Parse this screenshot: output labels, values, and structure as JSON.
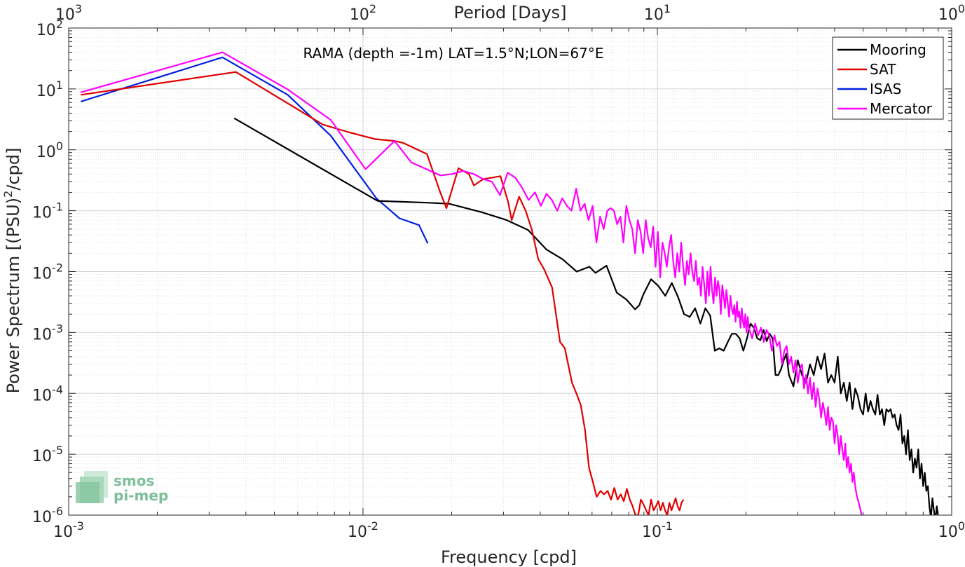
{
  "chart_data": {
    "type": "line",
    "title": "RAMA (depth =-1m) LAT=1.5°N;LON=67°E",
    "xlabel": "Frequency [cpd]",
    "ylabel": "Power Spectrum [(PSU)^2/cpd]",
    "ylabel_parts": {
      "base": "Power Spectrum [(PSU)",
      "sup": "2",
      "tail": "/cpd]"
    },
    "x2label": "Period [Days]",
    "xscale": "log",
    "yscale": "log",
    "xlim": [
      0.001,
      1
    ],
    "ylim": [
      1e-06,
      100
    ],
    "grid": true,
    "legend_placement": "top-right",
    "x_ticks": [
      {
        "value": 0.001,
        "base": "10",
        "exp": "-3"
      },
      {
        "value": 0.01,
        "base": "10",
        "exp": "-2"
      },
      {
        "value": 0.1,
        "base": "10",
        "exp": "-1"
      },
      {
        "value": 1,
        "base": "10",
        "exp": "0"
      }
    ],
    "y_ticks": [
      {
        "value": 1e-06,
        "base": "10",
        "exp": "-6"
      },
      {
        "value": 1e-05,
        "base": "10",
        "exp": "-5"
      },
      {
        "value": 0.0001,
        "base": "10",
        "exp": "-4"
      },
      {
        "value": 0.001,
        "base": "10",
        "exp": "-3"
      },
      {
        "value": 0.01,
        "base": "10",
        "exp": "-2"
      },
      {
        "value": 0.1,
        "base": "10",
        "exp": "-1"
      },
      {
        "value": 1,
        "base": "10",
        "exp": "0"
      },
      {
        "value": 10,
        "base": "10",
        "exp": "1"
      },
      {
        "value": 100,
        "base": "10",
        "exp": "2"
      }
    ],
    "top_ticks": [
      {
        "period": 1000,
        "base": "10",
        "exp": "3"
      },
      {
        "period": 100,
        "base": "10",
        "exp": "2"
      },
      {
        "period": 10,
        "base": "10",
        "exp": "1"
      },
      {
        "period": 1,
        "base": "10",
        "exp": "0"
      }
    ],
    "series": [
      {
        "name": "Mooring",
        "color": "#000000",
        "x": [
          0.00365,
          0.0112,
          0.0168,
          0.0196,
          0.0252,
          0.0308,
          0.0364,
          0.042,
          0.0476,
          0.0532,
          0.0588,
          0.0616,
          0.0672,
          0.0728,
          0.0784,
          0.084,
          0.0868,
          0.0896,
          0.0952,
          0.1008,
          0.1064,
          0.112,
          0.1176,
          0.1232,
          0.1288,
          0.1344,
          0.14,
          0.1456,
          0.1512,
          0.1568,
          0.1624,
          0.168,
          0.1736,
          0.1792,
          0.1848,
          0.1904,
          0.196,
          0.2016,
          0.2072,
          0.2128,
          0.2184,
          0.224,
          0.2296,
          0.2352,
          0.2408,
          0.2464,
          0.252,
          0.2576,
          0.2632,
          0.2688,
          0.2744,
          0.28,
          0.29,
          0.3,
          0.31,
          0.32,
          0.33,
          0.34,
          0.35,
          0.36,
          0.37,
          0.38,
          0.39,
          0.4,
          0.41,
          0.42,
          0.43,
          0.44,
          0.45,
          0.46,
          0.47,
          0.48,
          0.49,
          0.5,
          0.51,
          0.52,
          0.53,
          0.54,
          0.55,
          0.56,
          0.57,
          0.58,
          0.59,
          0.6,
          0.61,
          0.62,
          0.63,
          0.64,
          0.65,
          0.66,
          0.67,
          0.68,
          0.69,
          0.7,
          0.71,
          0.72,
          0.73,
          0.74,
          0.75,
          0.76,
          0.77,
          0.78,
          0.79,
          0.8,
          0.81,
          0.82,
          0.83,
          0.84,
          0.85,
          0.86,
          0.87,
          0.88,
          0.89,
          0.9,
          0.91,
          0.92,
          0.93
        ],
        "y": [
          3.3,
          0.145,
          0.135,
          0.13,
          0.095,
          0.07,
          0.048,
          0.023,
          0.016,
          0.01,
          0.012,
          0.0095,
          0.0125,
          0.0045,
          0.0035,
          0.0024,
          0.0028,
          0.0042,
          0.0075,
          0.0058,
          0.004,
          0.0065,
          0.0038,
          0.002,
          0.0018,
          0.0025,
          0.0014,
          0.0025,
          0.0019,
          0.0005,
          0.00055,
          0.0005,
          0.0007,
          0.00095,
          0.00095,
          0.0008,
          0.0005,
          0.0008,
          0.0014,
          0.0012,
          0.0008,
          0.00075,
          0.0011,
          0.00072,
          0.00095,
          0.0008,
          0.0002,
          0.0002,
          0.00025,
          0.00035,
          0.00045,
          0.0002,
          0.00013,
          0.00035,
          0.0002,
          0.00015,
          0.0003,
          0.0002,
          0.0004,
          0.00025,
          0.00045,
          0.00015,
          0.0002,
          0.00015,
          0.0004,
          0.0001,
          0.00015,
          7.5e-05,
          0.00015,
          5.5e-05,
          0.00012,
          9e-05,
          5.5e-05,
          4.5e-05,
          0.0001,
          5e-05,
          7.5e-05,
          5.5e-05,
          4.5e-05,
          9.5e-05,
          4.5e-05,
          5.5e-05,
          3e-05,
          5.5e-05,
          5e-05,
          5.5e-05,
          4e-05,
          4.5e-05,
          3e-05,
          2.5e-05,
          4.5e-05,
          1.5e-05,
          2e-05,
          1e-05,
          2.5e-05,
          8e-06,
          1.2e-05,
          5e-06,
          8.5e-06,
          6e-06,
          1.2e-05,
          4e-06,
          7e-06,
          3e-06,
          5e-06,
          2.5e-06,
          3e-06,
          1.4e-06,
          9e-07,
          1.9e-06,
          1.2e-06,
          8e-07,
          1.4e-06,
          9.5e-07,
          9e-07,
          9e-07,
          9e-07
        ]
      },
      {
        "name": "SAT",
        "color": "#e00000",
        "x": [
          0.0011,
          0.0037,
          0.0073,
          0.0082,
          0.0091,
          0.011,
          0.0128,
          0.0137,
          0.0165,
          0.0183,
          0.0192,
          0.0211,
          0.0229,
          0.0238,
          0.0256,
          0.0275,
          0.0293,
          0.0311,
          0.032,
          0.0339,
          0.0357,
          0.0375,
          0.0394,
          0.0412,
          0.0439,
          0.0467,
          0.0485,
          0.0513,
          0.0531,
          0.0549,
          0.0568,
          0.0577,
          0.0586,
          0.0604,
          0.0622,
          0.0641,
          0.0659,
          0.0678,
          0.0696,
          0.0714,
          0.0733,
          0.0751,
          0.0769,
          0.0788,
          0.0806,
          0.0824,
          0.0843,
          0.0861,
          0.0879,
          0.0897,
          0.0916,
          0.0934,
          0.0952,
          0.0971,
          0.0989,
          0.1007,
          0.1026,
          0.1044,
          0.1062,
          0.1081,
          0.1099,
          0.1117,
          0.1135,
          0.1154,
          0.1172,
          0.119,
          0.1209,
          0.1227
        ],
        "y": [
          8,
          19,
          2.6,
          2.2,
          1.9,
          1.5,
          1.4,
          1.3,
          0.85,
          0.2,
          0.11,
          0.5,
          0.4,
          0.26,
          0.33,
          0.35,
          0.37,
          0.14,
          0.07,
          0.17,
          0.1,
          0.048,
          0.016,
          0.011,
          0.0055,
          0.0007,
          0.00055,
          0.00015,
          0.0001,
          6.5e-05,
          2.5e-05,
          1.2e-05,
          6e-06,
          3.5e-06,
          2e-06,
          2.5e-06,
          2.2e-06,
          2.5e-06,
          1.8e-06,
          2.8e-06,
          1.8e-06,
          2.2e-06,
          1.7e-06,
          2.7e-06,
          1.8e-06,
          1.4e-06,
          1e-06,
          1e-06,
          1.8e-06,
          1.5e-06,
          1.2e-06,
          1e-06,
          1.8e-06,
          1.2e-06,
          1.4e-06,
          1.7e-06,
          1.2e-06,
          1.6e-06,
          1.2e-06,
          1e-06,
          1.6e-06,
          1.2e-06,
          1.5e-06,
          1.9e-06,
          1.4e-06,
          1.2e-06,
          1.6e-06,
          1.8e-06
        ]
      },
      {
        "name": "ISAS",
        "color": "#0020e0",
        "x": [
          0.0011,
          0.00333,
          0.00555,
          0.00777,
          0.0111,
          0.0133,
          0.0155,
          0.0166
        ],
        "y": [
          6.2,
          33,
          8,
          1.7,
          0.16,
          0.075,
          0.058,
          0.029
        ]
      },
      {
        "name": "Mercator",
        "color": "#ff00ff",
        "x": [
          0.0011,
          0.00333,
          0.00555,
          0.00777,
          0.0102,
          0.0128,
          0.0146,
          0.0183,
          0.0201,
          0.0219,
          0.0238,
          0.0256,
          0.0274,
          0.0292,
          0.031,
          0.0329,
          0.0347,
          0.0365,
          0.0384,
          0.0402,
          0.042,
          0.0438,
          0.0457,
          0.0475,
          0.0493,
          0.0511,
          0.053,
          0.0548,
          0.0566,
          0.0584,
          0.0603,
          0.0621,
          0.0639,
          0.0657,
          0.0676,
          0.0694,
          0.0712,
          0.073,
          0.0749,
          0.0767,
          0.0785,
          0.0804,
          0.0822,
          0.084,
          0.0858,
          0.0877,
          0.0895,
          0.0913,
          0.0931,
          0.095,
          0.0968,
          0.0986,
          0.1004,
          0.1023,
          0.1041,
          0.1059,
          0.1077,
          0.1096,
          0.1114,
          0.1132,
          0.115,
          0.1169,
          0.1187,
          0.1205,
          0.1224,
          0.1242,
          0.126,
          0.1278,
          0.1297,
          0.1315,
          0.1333,
          0.1351,
          0.137,
          0.1388,
          0.1406,
          0.1424,
          0.1443,
          0.1461,
          0.1479,
          0.1497,
          0.1516,
          0.1534,
          0.1552,
          0.157,
          0.1589,
          0.1607,
          0.1625,
          0.1643,
          0.1662,
          0.168,
          0.1698,
          0.1716,
          0.1735,
          0.1753,
          0.1771,
          0.179,
          0.1808,
          0.1826,
          0.1844,
          0.1863,
          0.1881,
          0.1899,
          0.1917,
          0.1936,
          0.1954,
          0.1972,
          0.199,
          0.2009,
          0.2027,
          0.2045,
          0.21,
          0.215,
          0.22,
          0.225,
          0.23,
          0.235,
          0.24,
          0.245,
          0.25,
          0.255,
          0.26,
          0.265,
          0.27,
          0.275,
          0.28,
          0.285,
          0.29,
          0.295,
          0.3,
          0.305,
          0.31,
          0.315,
          0.32,
          0.325,
          0.33,
          0.335,
          0.34,
          0.345,
          0.35,
          0.355,
          0.36,
          0.365,
          0.37,
          0.375,
          0.38,
          0.385,
          0.39,
          0.395,
          0.4,
          0.405,
          0.41,
          0.415,
          0.42,
          0.425,
          0.43,
          0.435,
          0.44,
          0.445,
          0.45,
          0.455,
          0.46,
          0.465,
          0.47,
          0.475,
          0.48,
          0.485,
          0.49,
          0.495,
          0.5
        ],
        "y": [
          8.8,
          40,
          9.8,
          3.1,
          0.48,
          1.4,
          0.62,
          0.38,
          0.4,
          0.45,
          0.4,
          0.33,
          0.3,
          0.18,
          0.42,
          0.35,
          0.24,
          0.15,
          0.2,
          0.12,
          0.19,
          0.15,
          0.1,
          0.16,
          0.12,
          0.1,
          0.23,
          0.1,
          0.13,
          0.07,
          0.12,
          0.03,
          0.08,
          0.05,
          0.1,
          0.11,
          0.1,
          0.06,
          0.08,
          0.03,
          0.12,
          0.07,
          0.05,
          0.02,
          0.07,
          0.045,
          0.02,
          0.07,
          0.035,
          0.025,
          0.055,
          0.012,
          0.045,
          0.008,
          0.03,
          0.02,
          0.012,
          0.025,
          0.04,
          0.015,
          0.008,
          0.02,
          0.01,
          0.03,
          0.012,
          0.006,
          0.015,
          0.009,
          0.02,
          0.01,
          0.007,
          0.015,
          0.006,
          0.008,
          0.004,
          0.012,
          0.006,
          0.003,
          0.01,
          0.004,
          0.012,
          0.005,
          0.003,
          0.008,
          0.004,
          0.007,
          0.005,
          0.002,
          0.006,
          0.004,
          0.0025,
          0.005,
          0.003,
          0.0018,
          0.004,
          0.0025,
          0.002,
          0.0028,
          0.0015,
          0.0032,
          0.0018,
          0.0022,
          0.0012,
          0.0025,
          0.0015,
          0.0012,
          0.002,
          0.001,
          0.0018,
          0.0012,
          0.0008,
          0.0014,
          0.0009,
          0.0012,
          0.0007,
          0.0011,
          0.0009,
          0.0005,
          0.0009,
          0.0006,
          0.0007,
          0.0003,
          0.0005,
          0.0006,
          0.0003,
          0.0004,
          0.00022,
          0.00035,
          0.00015,
          0.00025,
          0.0003,
          0.00012,
          0.0002,
          0.0001,
          0.00018,
          8e-05,
          0.00015,
          6e-05,
          0.00012,
          8e-05,
          4e-05,
          7e-05,
          5e-05,
          3e-05,
          6e-05,
          2.5e-05,
          4e-05,
          3.5e-05,
          1.5e-05,
          3e-05,
          2e-05,
          1e-05,
          2e-05,
          1.2e-05,
          8e-06,
          1.5e-05,
          6e-06,
          9e-06,
          5e-06,
          7e-06,
          3.5e-06,
          5e-06,
          3e-06,
          2.2e-06,
          1.8e-06,
          1.5e-06,
          1.2e-06,
          1e-06,
          9.5e-07
        ]
      }
    ]
  },
  "logo": {
    "line1": "smos",
    "line2": "pi-mep"
  }
}
